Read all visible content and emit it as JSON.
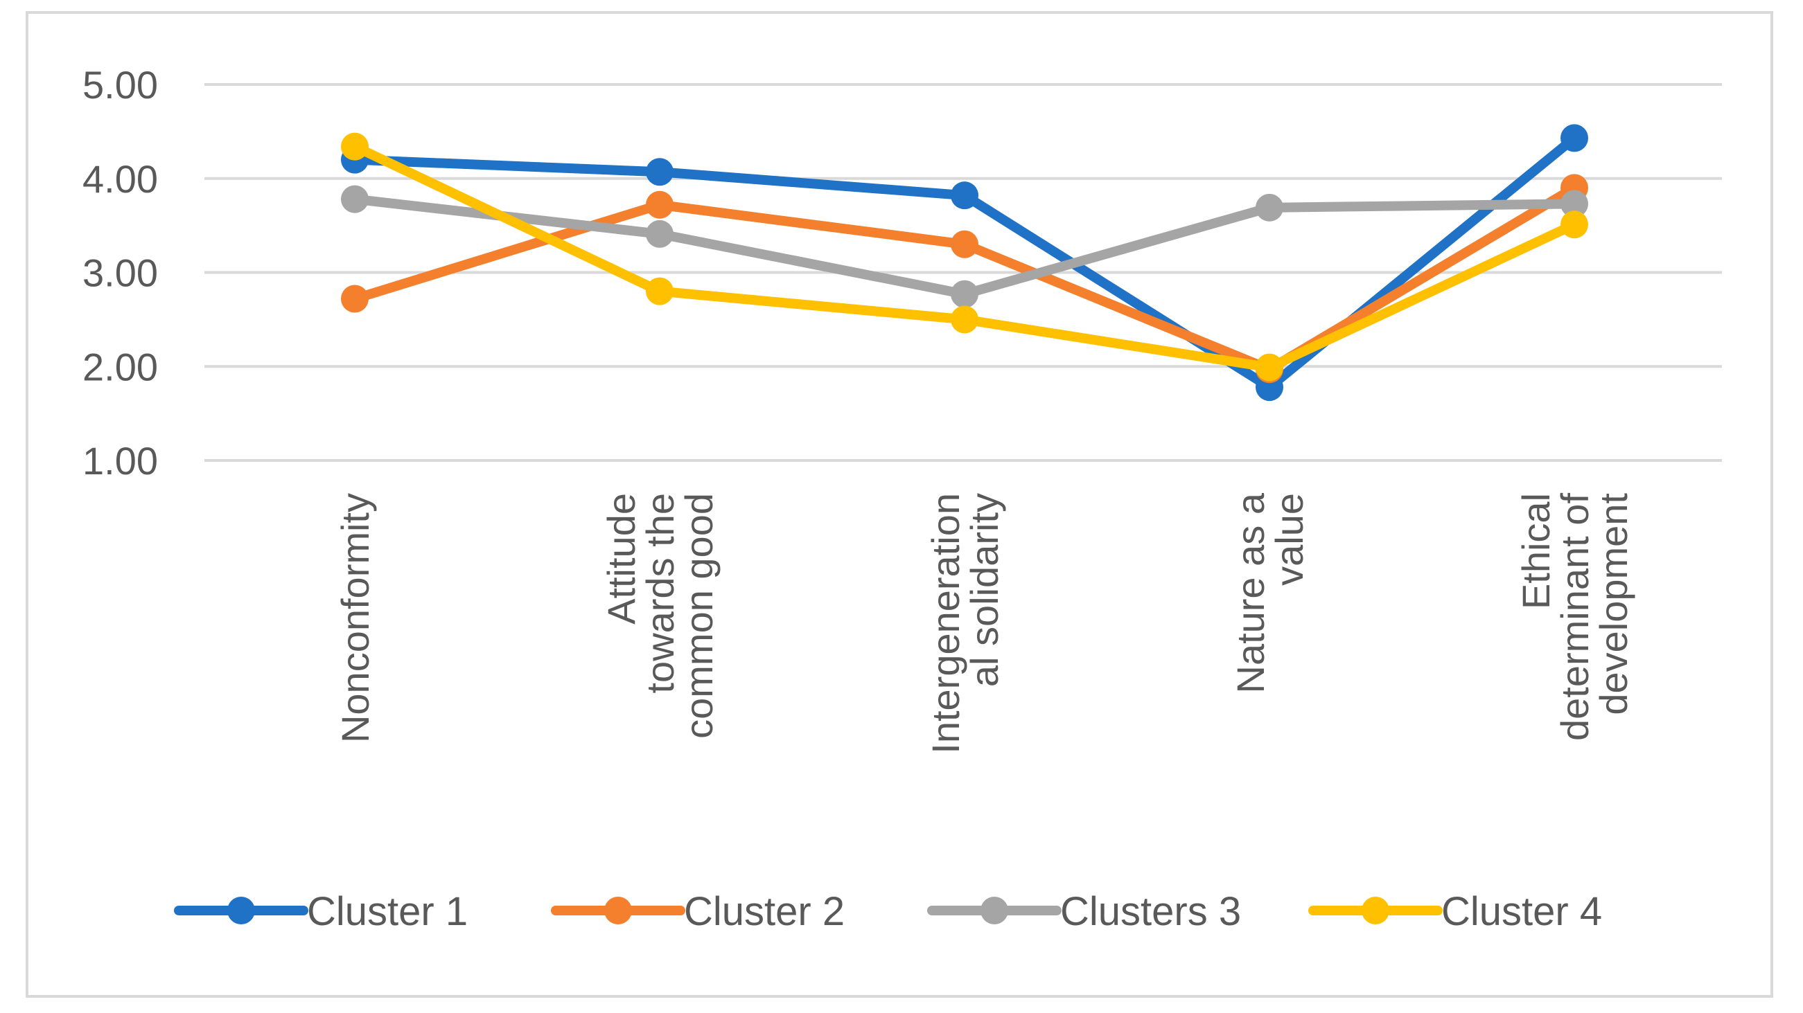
{
  "chart_data": {
    "type": "line",
    "title": "",
    "xlabel": "",
    "ylabel": "",
    "ylim": [
      1.0,
      5.0
    ],
    "yticks": [
      "1.00",
      "2.00",
      "3.00",
      "4.00",
      "5.00"
    ],
    "grid": true,
    "legend_position": "bottom",
    "categories": [
      [
        "Nonconformity"
      ],
      [
        "Attitude",
        "towards the",
        "common good"
      ],
      [
        "Intergeneration",
        "al solidarity"
      ],
      [
        "Nature as a",
        "value"
      ],
      [
        "Ethical",
        "determinant of",
        "development"
      ]
    ],
    "series": [
      {
        "name": "Cluster 1",
        "color": "#1f72c6",
        "values": [
          4.2,
          4.07,
          3.82,
          1.78,
          4.43
        ]
      },
      {
        "name": "Cluster 2",
        "color": "#f47f2c",
        "values": [
          2.72,
          3.72,
          3.3,
          1.97,
          3.9
        ]
      },
      {
        "name": "Clusters 3",
        "color": "#a5a5a5",
        "values": [
          3.78,
          3.41,
          2.77,
          3.69,
          3.73
        ]
      },
      {
        "name": "Cluster 4",
        "color": "#ffc000",
        "values": [
          4.34,
          2.8,
          2.5,
          1.99,
          3.51
        ]
      }
    ]
  }
}
